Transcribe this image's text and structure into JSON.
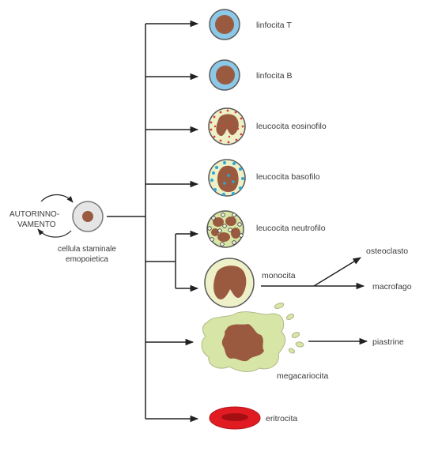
{
  "stem_cell": {
    "self_renewal_line1": "AUTORINNO-",
    "self_renewal_line2": "VAMENTO",
    "name_line1": "cellula staminale",
    "name_line2": "emopoietica"
  },
  "cells": {
    "t_lymphocyte": "linfocita T",
    "b_lymphocyte": "linfocita B",
    "eosinophil": "leucocita eosinofilo",
    "basophil": "leucocita basofilo",
    "neutrophil": "leucocita neutrofilo",
    "monocyte": "monocita",
    "osteoclast": "osteoclasto",
    "macrophage": "macrofago",
    "megakaryocyte": "megacariocita",
    "platelets": "piastrine",
    "erythrocyte": "eritrocita"
  },
  "colors": {
    "nucleus": "#9a5a3f",
    "lymph_membrane": "#8cc8e8",
    "cytoplasm": "#eef0c8",
    "cytoplasm_green": "#d7e6a6",
    "eosin_granules": "#d93a3a",
    "baso_granules": "#29a8d8",
    "erythrocyte": "#e01b22",
    "erythrocyte_center": "#a50f14",
    "stem_cell": "#e5e5e5",
    "line": "#222222"
  }
}
